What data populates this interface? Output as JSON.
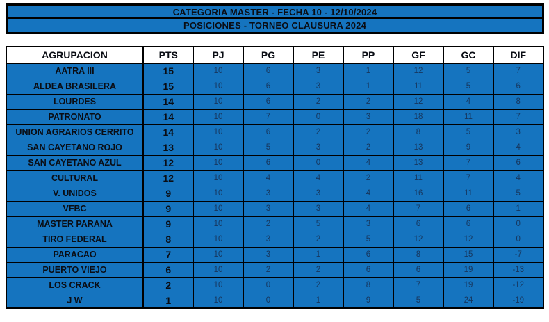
{
  "header": {
    "line1": "CATEGORIA MASTER - FECHA 10 - 12/10/2024",
    "line2": "POSICIONES - TORNEO CLAUSURA 2024"
  },
  "table": {
    "columns": [
      "AGRUPACION",
      "PTS",
      "PJ",
      "PG",
      "PE",
      "PP",
      "GF",
      "GC",
      "DIF"
    ],
    "rows": [
      {
        "team": "AATRA III",
        "values": [
          "15",
          "10",
          "6",
          "3",
          "1",
          "12",
          "5",
          "7"
        ]
      },
      {
        "team": "ALDEA BRASILERA",
        "values": [
          "15",
          "10",
          "6",
          "3",
          "1",
          "11",
          "5",
          "6"
        ]
      },
      {
        "team": "LOURDES",
        "values": [
          "14",
          "10",
          "6",
          "2",
          "2",
          "12",
          "4",
          "8"
        ]
      },
      {
        "team": "PATRONATO",
        "values": [
          "14",
          "10",
          "7",
          "0",
          "3",
          "18",
          "11",
          "7"
        ]
      },
      {
        "team": "UNION AGRARIOS CERRITO",
        "values": [
          "14",
          "10",
          "6",
          "2",
          "2",
          "8",
          "5",
          "3"
        ]
      },
      {
        "team": "SAN CAYETANO ROJO",
        "values": [
          "13",
          "10",
          "5",
          "3",
          "2",
          "13",
          "9",
          "4"
        ]
      },
      {
        "team": "SAN CAYETANO AZUL",
        "values": [
          "12",
          "10",
          "6",
          "0",
          "4",
          "13",
          "7",
          "6"
        ]
      },
      {
        "team": "CULTURAL",
        "values": [
          "12",
          "10",
          "4",
          "4",
          "2",
          "11",
          "7",
          "4"
        ]
      },
      {
        "team": "V. UNIDOS",
        "values": [
          "9",
          "10",
          "3",
          "3",
          "4",
          "16",
          "11",
          "5"
        ]
      },
      {
        "team": "VFBC",
        "values": [
          "9",
          "10",
          "3",
          "3",
          "4",
          "7",
          "6",
          "1"
        ]
      },
      {
        "team": "MASTER PARANA",
        "values": [
          "9",
          "10",
          "2",
          "5",
          "3",
          "6",
          "6",
          "0"
        ]
      },
      {
        "team": "TIRO FEDERAL",
        "values": [
          "8",
          "10",
          "3",
          "2",
          "5",
          "12",
          "12",
          "0"
        ]
      },
      {
        "team": "PARACAO",
        "values": [
          "7",
          "10",
          "3",
          "1",
          "6",
          "8",
          "15",
          "-7"
        ]
      },
      {
        "team": "PUERTO VIEJO",
        "values": [
          "6",
          "10",
          "2",
          "2",
          "6",
          "6",
          "19",
          "-13"
        ]
      },
      {
        "team": "LOS CRACK",
        "values": [
          "2",
          "10",
          "0",
          "2",
          "8",
          "7",
          "19",
          "-12"
        ]
      },
      {
        "team": "J W",
        "values": [
          "1",
          "10",
          "0",
          "1",
          "9",
          "5",
          "24",
          "-19"
        ]
      }
    ]
  },
  "colors": {
    "table_blue": "#1574BF",
    "stat_text_navy": "#17365D",
    "border_black": "#000000"
  }
}
